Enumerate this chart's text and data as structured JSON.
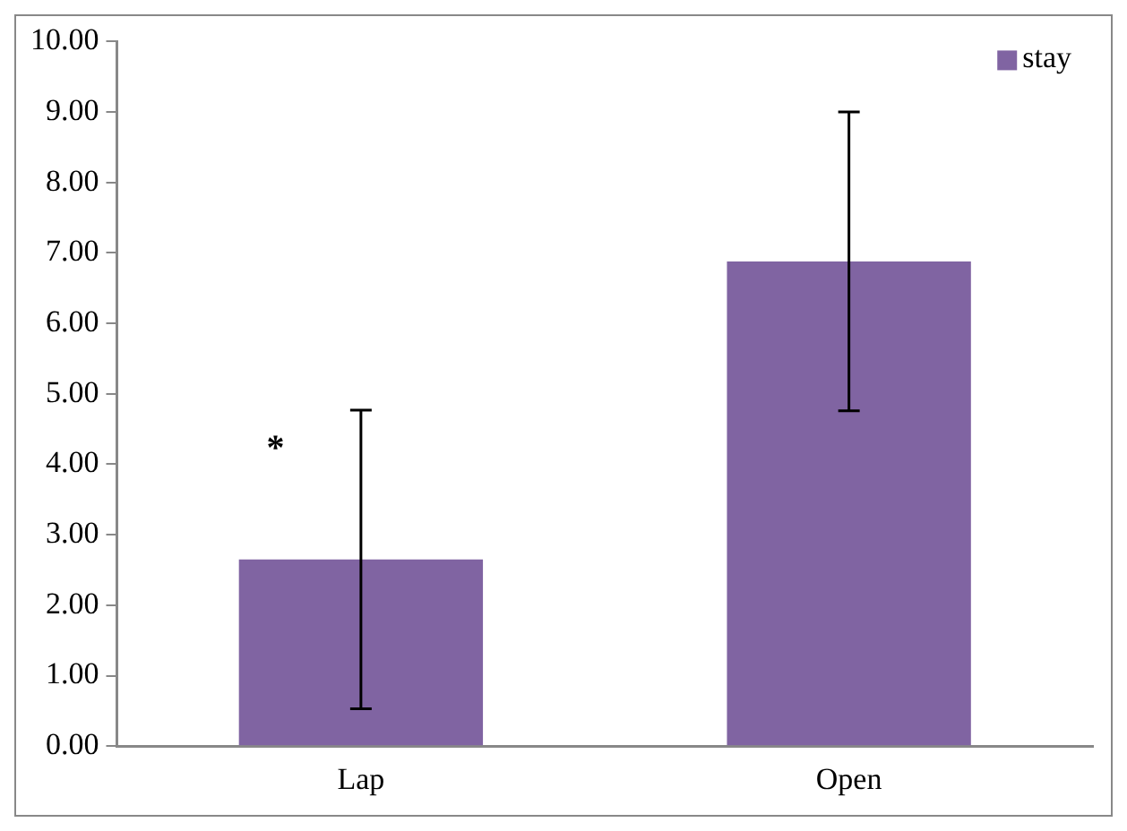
{
  "chart_data": {
    "type": "bar",
    "categories": [
      "Lap",
      "Open"
    ],
    "series": [
      {
        "name": "stay",
        "color": "#8064a2",
        "values": [
          2.65,
          6.88
        ],
        "errors": [
          2.12,
          2.12
        ]
      }
    ],
    "ylim": [
      0,
      10
    ],
    "yticks": [
      {
        "value": 0,
        "label": "0.00"
      },
      {
        "value": 1,
        "label": "1.00"
      },
      {
        "value": 2,
        "label": "2.00"
      },
      {
        "value": 3,
        "label": "3.00"
      },
      {
        "value": 4,
        "label": "4.00"
      },
      {
        "value": 5,
        "label": "5.00"
      },
      {
        "value": 6,
        "label": "6.00"
      },
      {
        "value": 7,
        "label": "7.00"
      },
      {
        "value": 8,
        "label": "8.00"
      },
      {
        "value": 9,
        "label": "9.00"
      },
      {
        "value": 10,
        "label": "10.00"
      }
    ],
    "grid": false,
    "legend": "top right",
    "annotations": [
      {
        "text": "*",
        "x": "Lap",
        "y": 4.2
      }
    ]
  }
}
